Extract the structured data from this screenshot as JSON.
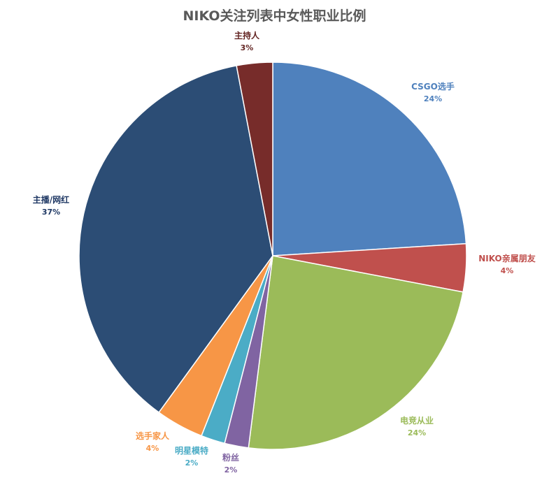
{
  "chart_data": {
    "type": "pie",
    "title": "NIKO关注列表中女性职业比例",
    "slices": [
      {
        "name": "CSGO选手",
        "value": 24,
        "label": "24%",
        "color": "#4F81BD",
        "label_color": "#4F81BD"
      },
      {
        "name": "NIKO亲属朋友",
        "value": 4,
        "label": "4%",
        "color": "#C0504D",
        "label_color": "#C0504D"
      },
      {
        "name": "电竞从业",
        "value": 24,
        "label": "24%",
        "color": "#9BBB59",
        "label_color": "#9BBB59"
      },
      {
        "name": "粉丝",
        "value": 2,
        "label": "2%",
        "color": "#8064A2",
        "label_color": "#8064A2"
      },
      {
        "name": "明星模特",
        "value": 2,
        "label": "2%",
        "color": "#4BACC6",
        "label_color": "#4BACC6"
      },
      {
        "name": "选手家人",
        "value": 4,
        "label": "4%",
        "color": "#F79646",
        "label_color": "#F79646"
      },
      {
        "name": "主播/网红",
        "value": 37,
        "label": "37%",
        "color": "#2C4D75",
        "label_color": "#1F3864"
      },
      {
        "name": "主持人",
        "value": 3,
        "label": "3%",
        "color": "#772C2A",
        "label_color": "#632523"
      }
    ]
  }
}
